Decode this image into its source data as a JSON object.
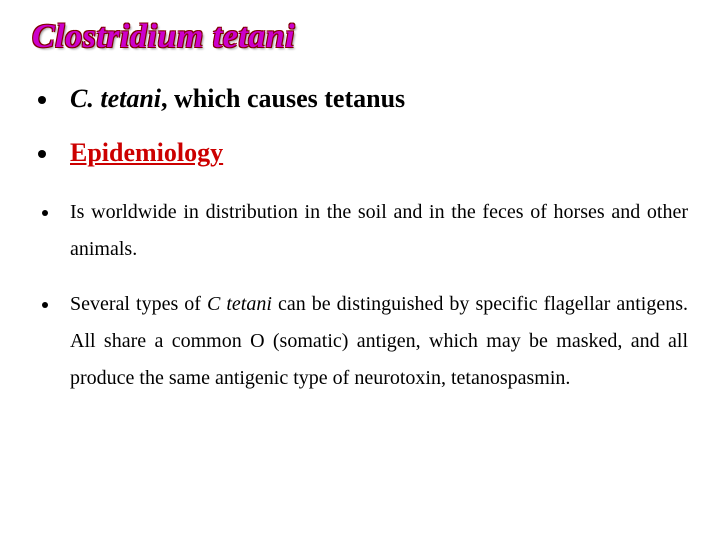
{
  "title": "Clostridium tetani",
  "title_color": "#cc00cc",
  "title_outline": "#800000",
  "bullet1_italic": "C. tetani",
  "bullet1_rest": ", which causes tetanus",
  "bullet2_text": " Epidemiology",
  "bullet2_color": "#cc0000",
  "sub1": "Is worldwide in distribution in the soil and in the feces of horses and other animals.",
  "sub2_a": "Several types of ",
  "sub2_ital": "C tetani",
  "sub2_b": " can be distinguished by specific flagellar antigens. All share a common O (somatic) antigen, which may be masked, and all produce the same antigenic type of neurotoxin, tetanospasmin.",
  "fonts": {
    "title_size": 34,
    "big_bullet_size": 26,
    "small_bullet_size": 20
  },
  "colors": {
    "background": "#ffffff",
    "text": "#000000"
  }
}
